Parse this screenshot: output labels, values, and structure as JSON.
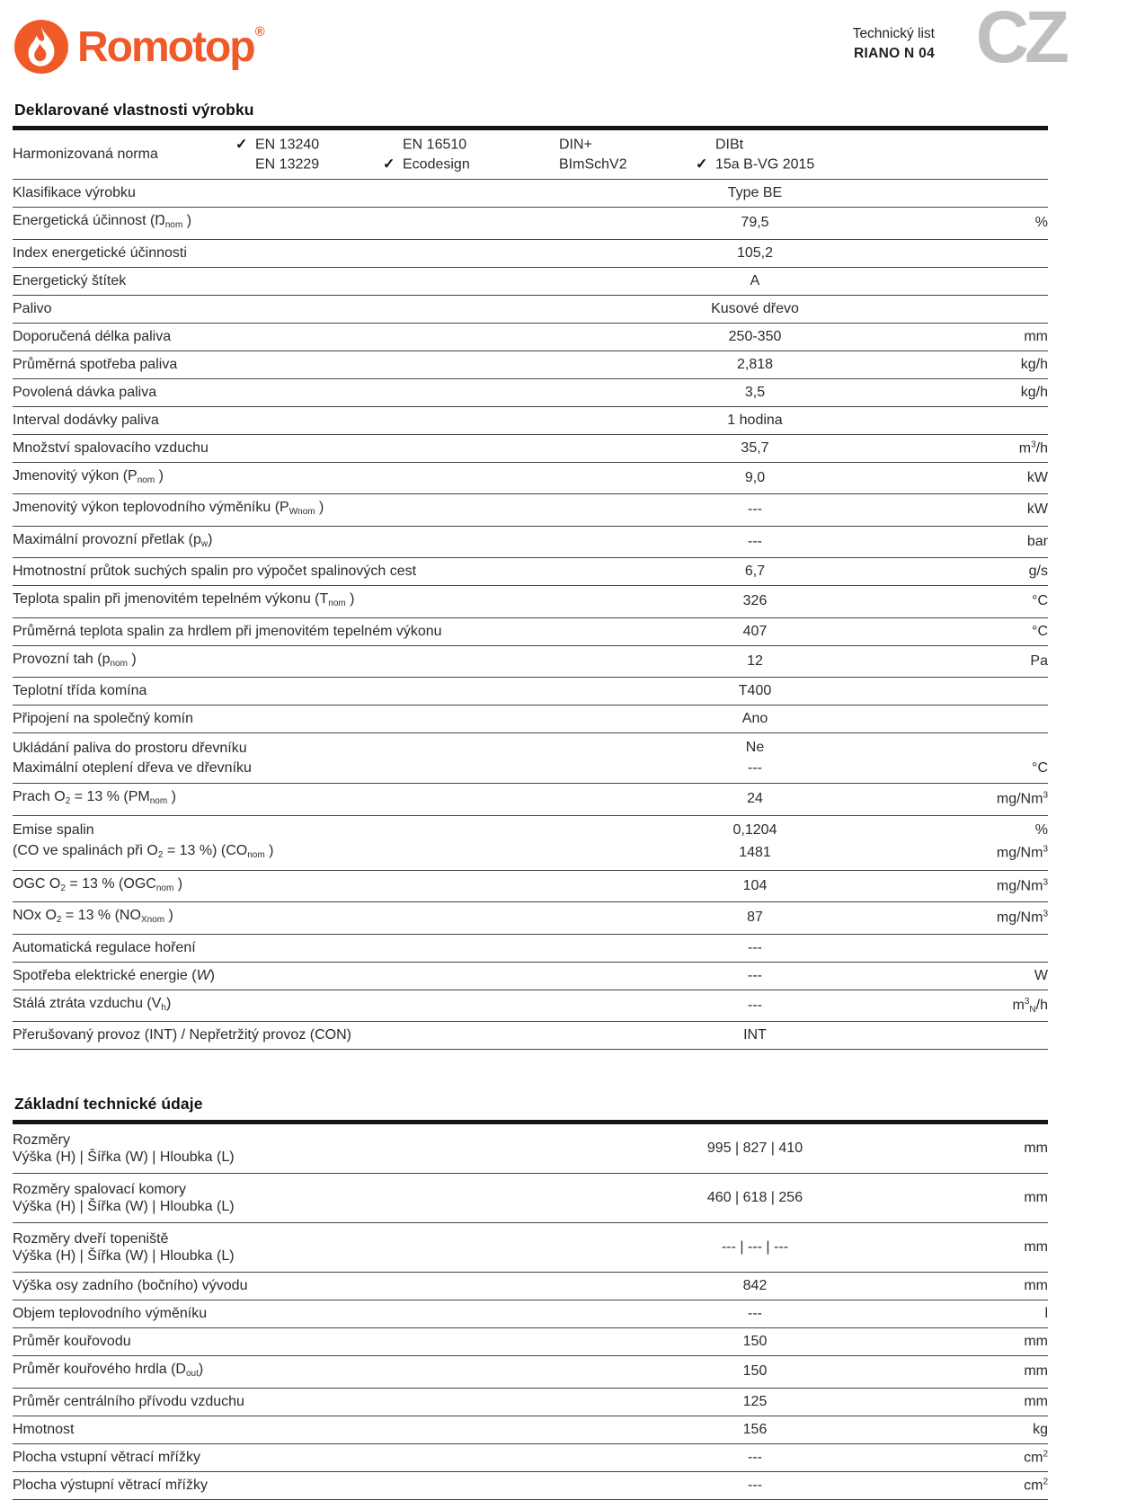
{
  "header": {
    "brand": "Romotop",
    "reg_mark": "®",
    "doc_type": "Technický list",
    "product": "RIANO N 04",
    "lang_badge": "CZ"
  },
  "colors": {
    "brand_orange": "#F05A28",
    "badge_gray": "#BFBFC1",
    "rule_thin": "#454545",
    "rule_thick": "#151515"
  },
  "sections": [
    {
      "title": "Deklarované vlastnosti výrobku",
      "rows": [
        {
          "type": "norms",
          "label": "Harmonizovaná norma",
          "columns": [
            {
              "items": [
                {
                  "checked": true,
                  "text": "EN 13240"
                },
                {
                  "checked": false,
                  "text": "EN 13229"
                }
              ]
            },
            {
              "items": [
                {
                  "checked": false,
                  "text": "EN 16510"
                },
                {
                  "checked": true,
                  "text": "Ecodesign"
                }
              ]
            },
            {
              "items": [
                {
                  "checked": false,
                  "text": "DIN+"
                },
                {
                  "checked": false,
                  "text": "BImSchV2"
                }
              ]
            },
            {
              "items": [
                {
                  "checked": false,
                  "text": "DIBt"
                },
                {
                  "checked": true,
                  "text": "15a B-VG 2015"
                }
              ]
            }
          ]
        },
        {
          "type": "simple",
          "label": "Klasifikace výrobku",
          "value": "Type BE",
          "unit": ""
        },
        {
          "type": "simple",
          "label": "Energetická účinnost (Ŋ_{nom} )",
          "value": "79,5",
          "unit": "%"
        },
        {
          "type": "simple",
          "label": "Index energetické účinnosti",
          "value": "105,2",
          "unit": ""
        },
        {
          "type": "simple",
          "label": "Energetický štítek",
          "value": "A",
          "unit": ""
        },
        {
          "type": "simple",
          "label": "Palivo",
          "value": "Kusové dřevo",
          "unit": ""
        },
        {
          "type": "simple",
          "label": "Doporučená délka paliva",
          "value": "250-350",
          "unit": "mm"
        },
        {
          "type": "simple",
          "label": "Průměrná spotřeba paliva",
          "value": "2,818",
          "unit": "kg/h"
        },
        {
          "type": "simple",
          "label": "Povolená dávka paliva",
          "value": "3,5",
          "unit": "kg/h"
        },
        {
          "type": "simple",
          "label": "Interval dodávky paliva",
          "value": "1 hodina",
          "unit": ""
        },
        {
          "type": "simple",
          "label": "Množství spalovacího vzduchu",
          "value": "35,7",
          "unit": "m^{3}/h"
        },
        {
          "type": "simple",
          "label": "Jmenovitý výkon (P_{nom} )",
          "value": "9,0",
          "unit": "kW"
        },
        {
          "type": "simple",
          "label": "Jmenovitý výkon teplovodního výměníku (P_{Wnom} )",
          "value": "---",
          "unit": "kW"
        },
        {
          "type": "simple",
          "label": "Maximální provozní přetlak (p_{w})",
          "value": "---",
          "unit": "bar"
        },
        {
          "type": "simple",
          "label": "Hmotnostní průtok suchých spalin pro výpočet spalinových cest",
          "value": "6,7",
          "unit": "g/s"
        },
        {
          "type": "simple",
          "label": "Teplota spalin při jmenovitém tepelném výkonu (T_{nom} )",
          "value": "326",
          "unit": "°C"
        },
        {
          "type": "simple",
          "label": "Průměrná teplota spalin za hrdlem při jmenovitém tepelném výkonu",
          "value": "407",
          "unit": "°C"
        },
        {
          "type": "simple",
          "label": "Provozní tah (p_{nom} )",
          "value": "12",
          "unit": "Pa"
        },
        {
          "type": "simple",
          "label": "Teplotní třída komína",
          "value": "T400",
          "unit": ""
        },
        {
          "type": "simple",
          "label": "Připojení na společný komín",
          "value": "Ano",
          "unit": ""
        },
        {
          "type": "multiline",
          "lines": [
            {
              "label": "Ukládání paliva do prostoru dřevníku",
              "value": "Ne",
              "unit": ""
            },
            {
              "label": "Maximální oteplení dřeva ve dřevníku",
              "value": "---",
              "unit": "°C"
            }
          ]
        },
        {
          "type": "simple",
          "label": "Prach O_{2} = 13 % (PM_{nom} )",
          "value": "24",
          "unit": "mg/Nm^{3}"
        },
        {
          "type": "multiline",
          "lines": [
            {
              "label": "Emise spalin",
              "value": "0,1204",
              "unit": "%"
            },
            {
              "label": "(CO ve spalinách při O_{2} = 13 %) (CO_{nom} )",
              "value": "1481",
              "unit": "mg/Nm^{3}"
            }
          ]
        },
        {
          "type": "simple",
          "label": "OGC O_{2} = 13 % (OGC_{nom} )",
          "value": "104",
          "unit": "mg/Nm^{3}"
        },
        {
          "type": "simple",
          "label": "NOx O_{2} = 13 % (NO_{Xnom} )",
          "value": "87",
          "unit": "mg/Nm^{3}"
        },
        {
          "type": "simple",
          "label": "Automatická regulace hoření",
          "value": "---",
          "unit": ""
        },
        {
          "type": "simple",
          "label": "Spotřeba elektrické energie (*{W})",
          "value": "---",
          "unit": "W"
        },
        {
          "type": "simple",
          "label": "Stálá ztráta vzduchu (V_{h})",
          "value": "---",
          "unit": "m^{3}_{N}/h"
        },
        {
          "type": "simple",
          "label": "Přerušovaný provoz (INT) / Nepřetržitý provoz (CON)",
          "value": "INT",
          "unit": ""
        }
      ]
    },
    {
      "title": "Základní technické údaje",
      "rows": [
        {
          "type": "dim",
          "label_lines": [
            "Rozměry",
            "Výška (H) | Šířka (W) | Hloubka (L)"
          ],
          "value": "995 | 827 | 410",
          "unit": "mm"
        },
        {
          "type": "dim",
          "label_lines": [
            "Rozměry spalovací komory",
            "Výška (H) | Šířka (W) | Hloubka (L)"
          ],
          "value": "460 | 618 | 256",
          "unit": "mm"
        },
        {
          "type": "dim",
          "label_lines": [
            "Rozměry dveří topeniště",
            "Výška (H) | Šířka (W) | Hloubka (L)"
          ],
          "value": "--- | --- | ---",
          "unit": "mm"
        },
        {
          "type": "simple",
          "label": "Výška osy zadního (bočního) vývodu",
          "value": "842",
          "unit": "mm"
        },
        {
          "type": "simple",
          "label": "Objem teplovodního výměníku",
          "value": "---",
          "unit": "l"
        },
        {
          "type": "simple",
          "label": "Průměr kouřovodu",
          "value": "150",
          "unit": "mm"
        },
        {
          "type": "simple",
          "label": "Průměr kouřového hrdla (D_{out})",
          "value": "150",
          "unit": "mm"
        },
        {
          "type": "simple",
          "label": "Průměr centrálního přívodu vzduchu",
          "value": "125",
          "unit": "mm"
        },
        {
          "type": "simple",
          "label": "Hmotnost",
          "value": "156",
          "unit": "kg"
        },
        {
          "type": "simple",
          "label": "Plocha vstupní větrací mřížky",
          "value": "---",
          "unit": "cm^{2}"
        },
        {
          "type": "simple",
          "label": "Plocha výstupní větrací mřížky",
          "value": "---",
          "unit": "cm^{2}"
        }
      ]
    }
  ]
}
